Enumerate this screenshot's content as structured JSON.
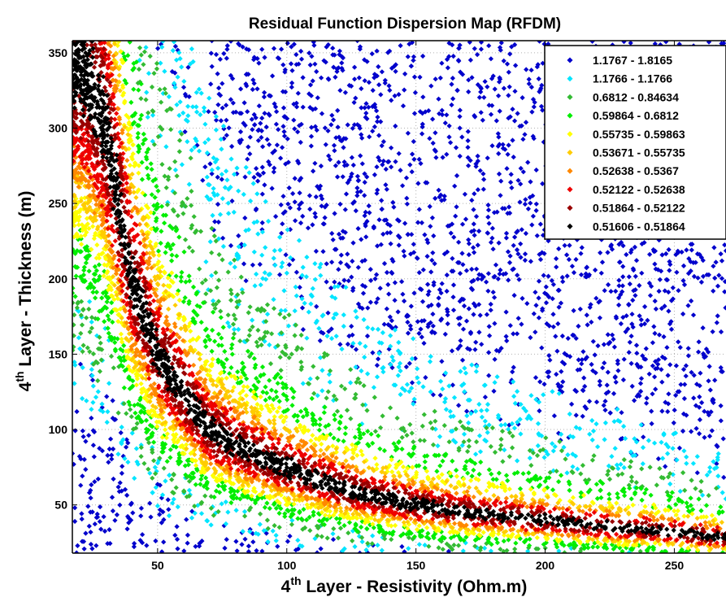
{
  "chart_data": {
    "type": "scatter",
    "title": "Residual Function Dispersion Map (RFDM)",
    "xlabel": {
      "base": "4",
      "sup": "th",
      "rest": " Layer - Resistivity (Ohm.m)"
    },
    "ylabel": {
      "base": "4",
      "sup": "th",
      "rest": " Layer - Thickness (m)"
    },
    "xlim": [
      17,
      270
    ],
    "ylim": [
      18,
      358
    ],
    "x_ticks": [
      50,
      100,
      150,
      200,
      250
    ],
    "x_tick_labels": [
      "50",
      "100",
      "150",
      "200",
      "250"
    ],
    "y_ticks": [
      50,
      100,
      150,
      200,
      250,
      300,
      350
    ],
    "y_tick_labels": [
      "50",
      "100",
      "150",
      "200",
      "250",
      "300",
      "350"
    ],
    "grid": "dotted",
    "legend_position": "top-right",
    "trend_curve": {
      "x": [
        22,
        30,
        35,
        40,
        45,
        50,
        60,
        70,
        80,
        100,
        120,
        150,
        200,
        250,
        270
      ],
      "y": [
        340,
        300,
        250,
        200,
        175,
        150,
        125,
        100,
        90,
        75,
        62,
        50,
        40,
        32,
        28
      ]
    },
    "series": [
      {
        "name": "1.1767 - 1.8165",
        "color": "#0000cc",
        "rank": 9
      },
      {
        "name": "1.1766 - 1.1766",
        "color": "#00e5ff",
        "rank": 8
      },
      {
        "name": "0.6812 - 0.84634",
        "color": "#33bb33",
        "rank": 7
      },
      {
        "name": "0.59864 - 0.6812",
        "color": "#00ee00",
        "rank": 6
      },
      {
        "name": "0.55735 - 0.59863",
        "color": "#ffff00",
        "rank": 5
      },
      {
        "name": "0.53671 - 0.55735",
        "color": "#ffcc00",
        "rank": 4
      },
      {
        "name": "0.52638 - 0.5367",
        "color": "#ff8800",
        "rank": 3
      },
      {
        "name": "0.52122 - 0.52638",
        "color": "#ee0000",
        "rank": 2
      },
      {
        "name": "0.51864 - 0.52122",
        "color": "#990000",
        "rank": 1
      },
      {
        "name": "0.51606 - 0.51864",
        "color": "#000000",
        "rank": 0
      }
    ]
  }
}
